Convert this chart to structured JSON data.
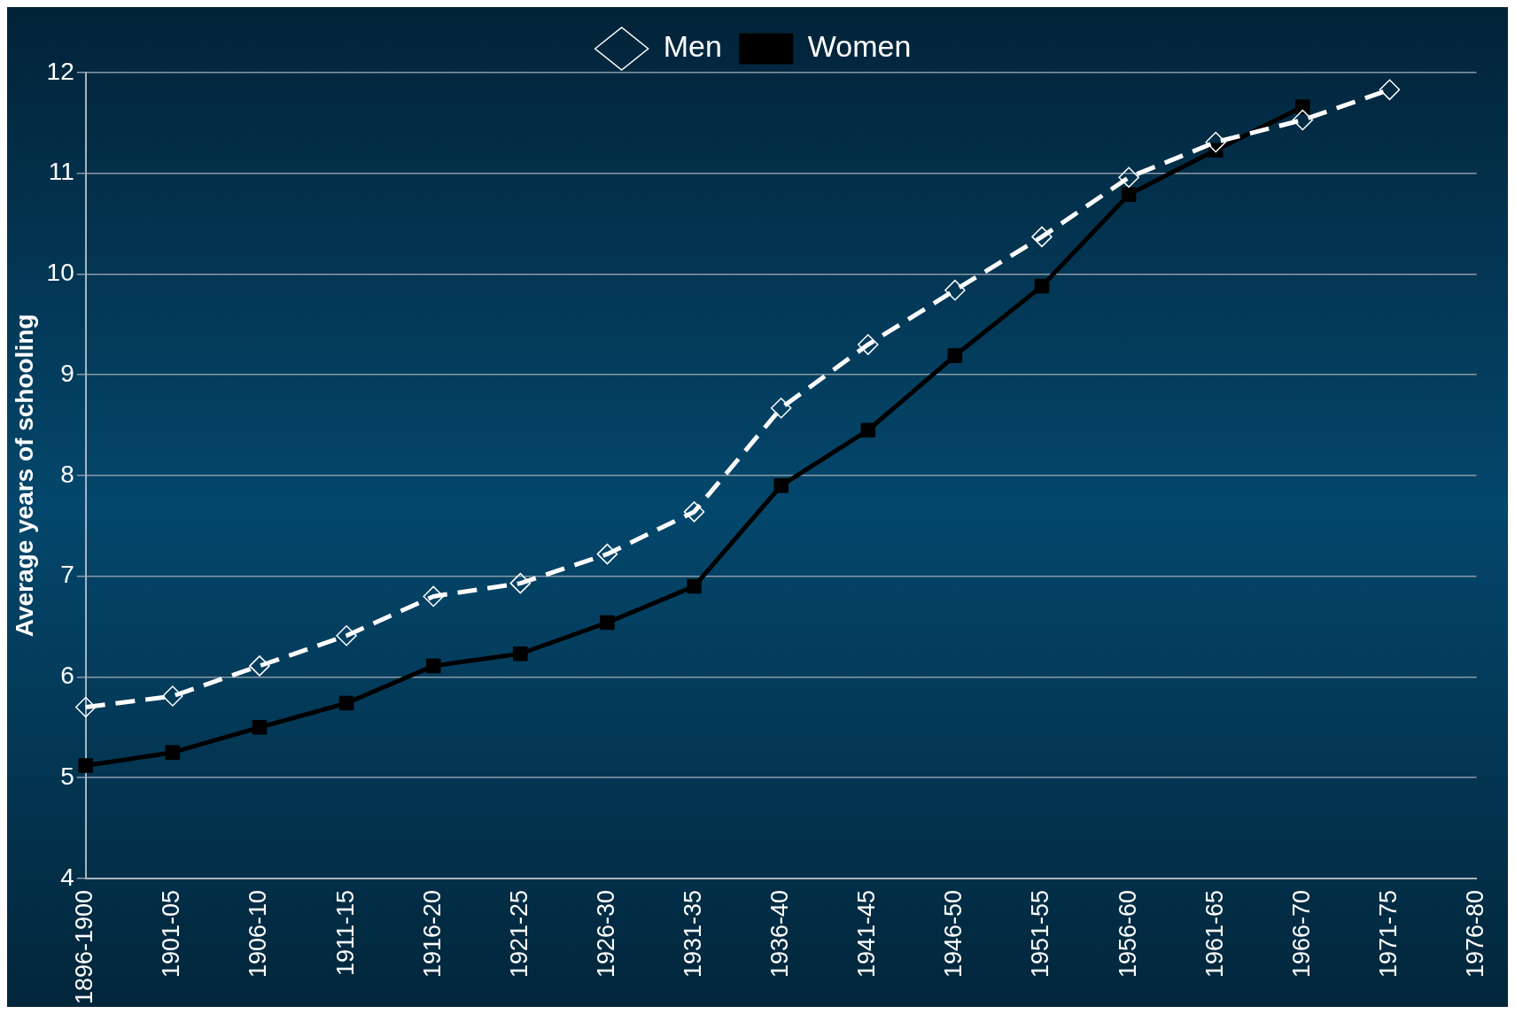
{
  "chart_data": {
    "type": "line",
    "ylabel": "Average years of schooling",
    "categories": [
      "1896-1900",
      "1901-05",
      "1906-10",
      "1911-15",
      "1916-20",
      "1921-25",
      "1926-30",
      "1931-35",
      "1936-40",
      "1941-45",
      "1946-50",
      "1951-55",
      "1956-60",
      "1961-65",
      "1966-70",
      "1971-75",
      "1976-80"
    ],
    "series": [
      {
        "name": "Men",
        "color": "#ffffff",
        "marker": "diamond",
        "line_style": "dashed",
        "values": [
          5.7,
          5.81,
          6.11,
          6.41,
          6.8,
          6.93,
          7.22,
          7.64,
          8.67,
          9.3,
          9.84,
          10.37,
          10.96,
          11.31,
          11.53,
          11.83,
          null
        ]
      },
      {
        "name": "Women",
        "color": "#000000",
        "marker": "square",
        "line_style": "solid",
        "values": [
          5.12,
          5.25,
          5.5,
          5.74,
          6.11,
          6.23,
          6.54,
          6.9,
          7.9,
          8.45,
          9.19,
          9.88,
          10.79,
          11.23,
          11.66,
          null,
          null
        ]
      }
    ],
    "ylim": [
      4,
      12
    ],
    "yticks": [
      4,
      5,
      6,
      7,
      8,
      9,
      10,
      11,
      12
    ],
    "grid": "y",
    "legend": "top"
  }
}
